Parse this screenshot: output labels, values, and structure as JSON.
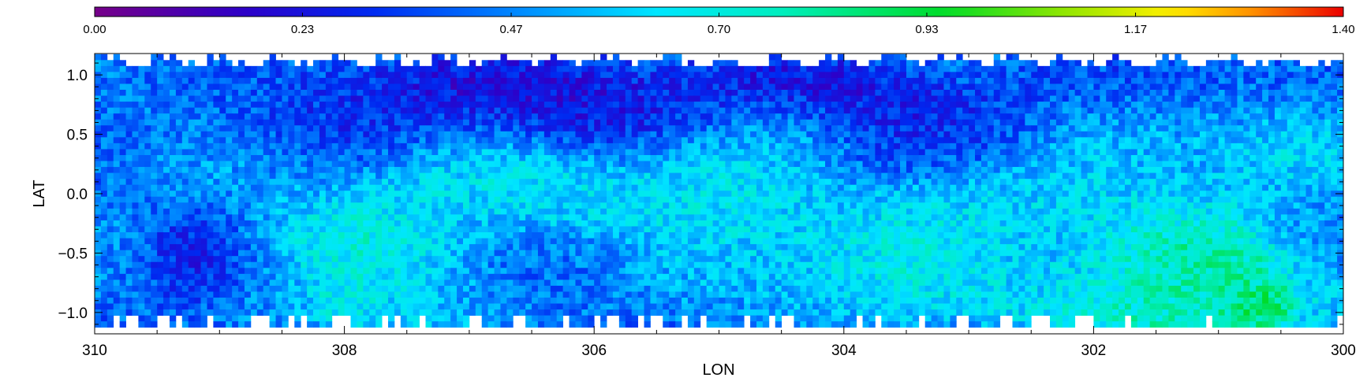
{
  "chart_data": {
    "type": "heatmap",
    "title": "",
    "xlabel": "LON",
    "ylabel": "LAT",
    "xlim": [
      310,
      300
    ],
    "ylim": [
      -1.18,
      1.18
    ],
    "x_reversed": true,
    "x_ticks": [
      {
        "value": 310,
        "label": "310"
      },
      {
        "value": 308,
        "label": "308"
      },
      {
        "value": 306,
        "label": "306"
      },
      {
        "value": 304,
        "label": "304"
      },
      {
        "value": 302,
        "label": "302"
      },
      {
        "value": 300,
        "label": "300"
      }
    ],
    "y_ticks": [
      {
        "value": 1.0,
        "label": "1.0"
      },
      {
        "value": 0.5,
        "label": "0.5"
      },
      {
        "value": 0.0,
        "label": "0.0"
      },
      {
        "value": -0.5,
        "label": "−0.5"
      },
      {
        "value": -1.0,
        "label": "−1.0"
      }
    ],
    "colorbar": {
      "min": 0.0,
      "max": 1.4,
      "colormap": "rainbow",
      "position": "top",
      "ticks": [
        {
          "value": 0.0,
          "label": "0.00"
        },
        {
          "value": 0.233,
          "label": "0.23"
        },
        {
          "value": 0.467,
          "label": "0.47"
        },
        {
          "value": 0.7,
          "label": "0.70"
        },
        {
          "value": 0.933,
          "label": "0.93"
        },
        {
          "value": 1.167,
          "label": "1.17"
        },
        {
          "value": 1.4,
          "label": "1.40"
        }
      ]
    },
    "grid": false,
    "pixel_size_deg": 0.05,
    "features": [
      {
        "lon": 310.0,
        "lat": 0.0,
        "value": 0.45,
        "sigma_lon": 1.2,
        "sigma_lat": 0.7
      },
      {
        "lon": 307.5,
        "lat": -0.35,
        "value": 0.72,
        "sigma_lon": 0.8,
        "sigma_lat": 0.35
      },
      {
        "lon": 307.3,
        "lat": -0.8,
        "value": 0.7,
        "sigma_lon": 0.5,
        "sigma_lat": 0.3
      },
      {
        "lon": 307.8,
        "lat": -1.0,
        "value": 0.66,
        "sigma_lon": 0.3,
        "sigma_lat": 0.15
      },
      {
        "lon": 306.3,
        "lat": -0.1,
        "value": 0.7,
        "sigma_lon": 0.5,
        "sigma_lat": 0.2
      },
      {
        "lon": 306.4,
        "lat": 0.1,
        "value": 0.62,
        "sigma_lon": 0.8,
        "sigma_lat": 0.3
      },
      {
        "lon": 305.0,
        "lat": 0.0,
        "value": 0.68,
        "sigma_lon": 0.5,
        "sigma_lat": 0.4
      },
      {
        "lon": 304.5,
        "lat": 0.4,
        "value": 0.62,
        "sigma_lon": 0.7,
        "sigma_lat": 0.25
      },
      {
        "lon": 304.3,
        "lat": -0.5,
        "value": 0.58,
        "sigma_lon": 1.6,
        "sigma_lat": 0.5
      },
      {
        "lon": 303.4,
        "lat": -0.4,
        "value": 0.66,
        "sigma_lon": 0.6,
        "sigma_lat": 0.3
      },
      {
        "lon": 302.3,
        "lat": -0.5,
        "value": 0.6,
        "sigma_lon": 0.9,
        "sigma_lat": 0.5
      },
      {
        "lon": 301.6,
        "lat": -0.45,
        "value": 0.74,
        "sigma_lon": 0.4,
        "sigma_lat": 0.3
      },
      {
        "lon": 301.0,
        "lat": -0.85,
        "value": 0.78,
        "sigma_lon": 0.7,
        "sigma_lat": 0.35
      },
      {
        "lon": 300.7,
        "lat": -0.95,
        "value": 0.95,
        "sigma_lon": 0.15,
        "sigma_lat": 0.1
      },
      {
        "lon": 300.5,
        "lat": 0.6,
        "value": 0.6,
        "sigma_lon": 0.8,
        "sigma_lat": 0.4
      },
      {
        "lon": 301.8,
        "lat": 0.3,
        "value": 0.55,
        "sigma_lon": 0.9,
        "sigma_lat": 0.4
      },
      {
        "lon": 305.0,
        "lat": 0.7,
        "value": 0.22,
        "sigma_lon": 1.0,
        "sigma_lat": 0.3
      },
      {
        "lon": 303.7,
        "lat": 0.55,
        "value": 0.24,
        "sigma_lon": 0.6,
        "sigma_lat": 0.3
      },
      {
        "lon": 306.5,
        "lat": -0.6,
        "value": 0.25,
        "sigma_lon": 0.8,
        "sigma_lat": 0.4
      },
      {
        "lon": 307.0,
        "lat": 0.8,
        "value": 0.25,
        "sigma_lon": 1.0,
        "sigma_lat": 0.3
      },
      {
        "lon": 309.2,
        "lat": -0.5,
        "value": 0.27,
        "sigma_lon": 0.25,
        "sigma_lat": 0.3
      },
      {
        "lon": 300.8,
        "lat": 0.9,
        "value": 0.28,
        "sigma_lon": 1.0,
        "sigma_lat": 0.25
      },
      {
        "lon": 302.7,
        "lat": 0.5,
        "value": 0.32,
        "sigma_lon": 0.4,
        "sigma_lat": 0.3
      }
    ]
  }
}
